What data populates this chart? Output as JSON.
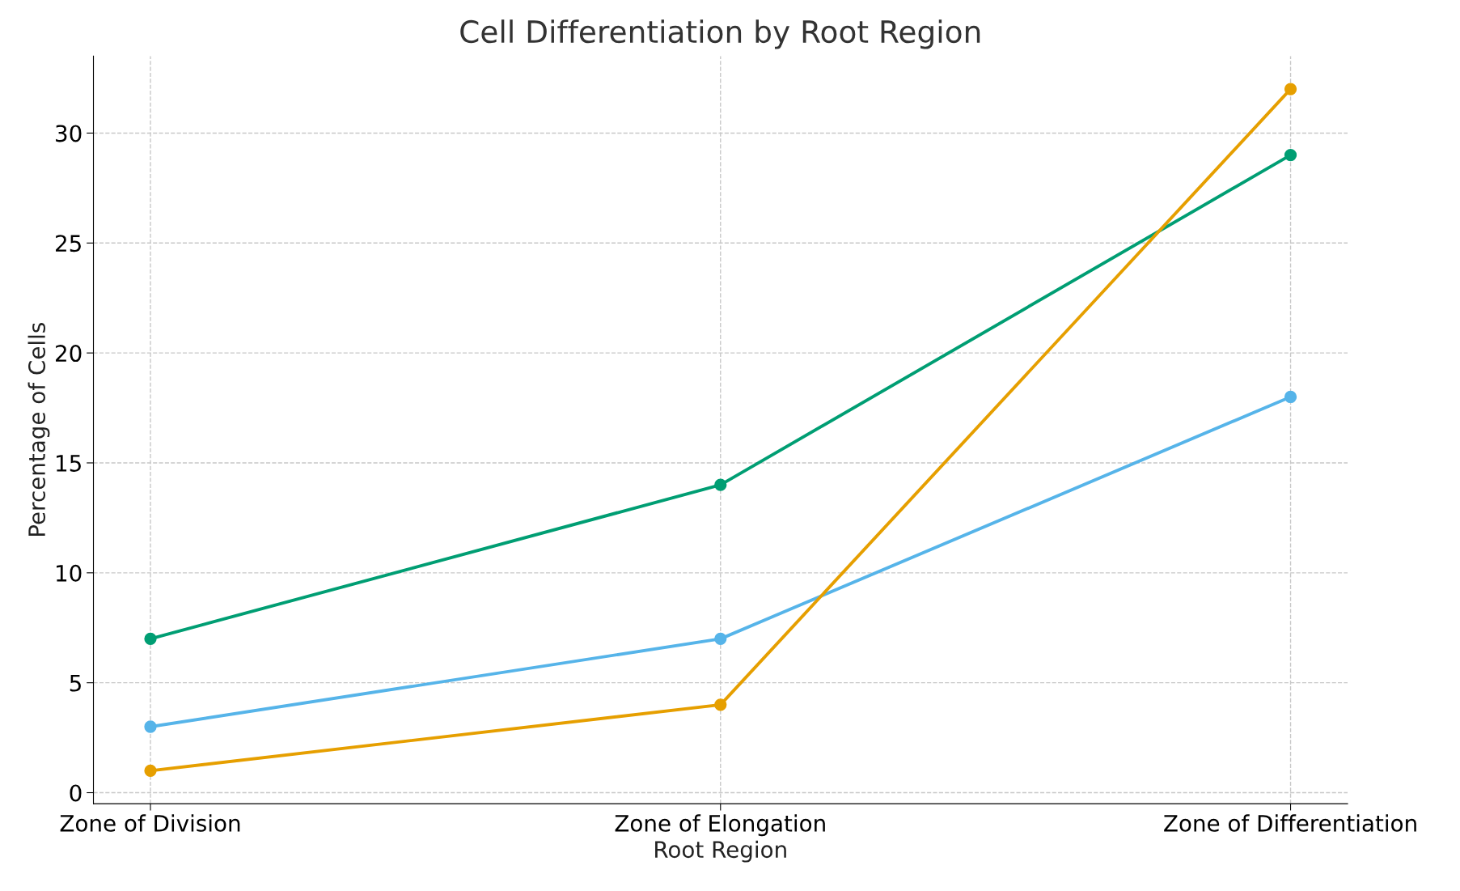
{
  "chart_data": {
    "type": "line",
    "title": "Cell Differentiation by Root Region",
    "xlabel": "Root Region",
    "ylabel": "Percentage of Cells",
    "categories": [
      "Zone of Division",
      "Zone of Elongation",
      "Zone of Differentiation"
    ],
    "series": [
      {
        "color": "#009e73",
        "values": [
          7,
          14,
          29
        ]
      },
      {
        "color": "#56b4e9",
        "values": [
          3,
          7,
          18
        ]
      },
      {
        "color": "#e69f00",
        "values": [
          1,
          4,
          32
        ]
      }
    ],
    "ylim": [
      -0.5,
      33.5
    ],
    "yticks": [
      0,
      5,
      10,
      15,
      20,
      25,
      30
    ],
    "grid": true,
    "marker": "circle",
    "line_style": "solid"
  }
}
